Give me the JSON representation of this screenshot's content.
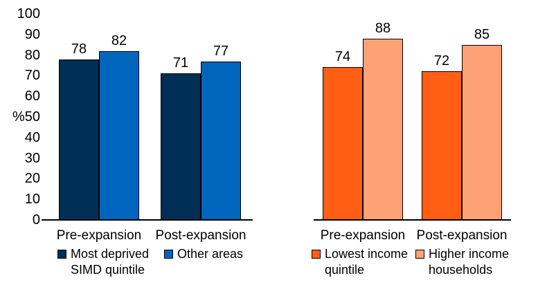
{
  "y_axis": {
    "unit_label": "%",
    "ticks": [
      {
        "value": 100,
        "label": "100"
      },
      {
        "value": 90,
        "label": "90"
      },
      {
        "value": 80,
        "label": "80"
      },
      {
        "value": 70,
        "label": "70"
      },
      {
        "value": 60,
        "label": "60"
      },
      {
        "value": 50,
        "label": "%50"
      },
      {
        "value": 40,
        "label": "40"
      },
      {
        "value": 30,
        "label": "30"
      },
      {
        "value": 20,
        "label": "20"
      },
      {
        "value": 10,
        "label": "10"
      },
      {
        "value": 0,
        "label": "0"
      }
    ]
  },
  "chart_data": [
    {
      "id": "deprivation-chart",
      "type": "bar",
      "title": "",
      "categories": [
        "Pre-expansion",
        "Post-expansion"
      ],
      "series": [
        {
          "name": "Most deprived SIMD quintile",
          "legend_lines": [
            "Most deprived",
            "SIMD quintile"
          ],
          "color": "#002F55",
          "values": [
            78,
            71
          ]
        },
        {
          "name": "Other areas",
          "legend_lines": [
            "Other areas"
          ],
          "color": "#0065BD",
          "values": [
            82,
            77
          ]
        }
      ],
      "ylabel": "%",
      "ylim": [
        0,
        100
      ],
      "show_y_tick_labels": true,
      "value_labels_shown": true,
      "grid": false,
      "legend_position": "bottom",
      "bar_outline_color": "#000000"
    },
    {
      "id": "income-chart",
      "type": "bar",
      "title": "",
      "categories": [
        "Pre-expansion",
        "Post-expansion"
      ],
      "series": [
        {
          "name": "Lowest income quintile",
          "legend_lines": [
            "Lowest income",
            "quintile"
          ],
          "color": "#FF5E13",
          "values": [
            74,
            72
          ]
        },
        {
          "name": "Higher income households",
          "legend_lines": [
            "Higher income",
            "households"
          ],
          "color": "#FFA176",
          "values": [
            88,
            85
          ]
        }
      ],
      "ylabel": "%",
      "ylim": [
        0,
        100
      ],
      "show_y_tick_labels": false,
      "value_labels_shown": true,
      "grid": false,
      "legend_position": "bottom",
      "bar_outline_color": "#000000"
    }
  ]
}
